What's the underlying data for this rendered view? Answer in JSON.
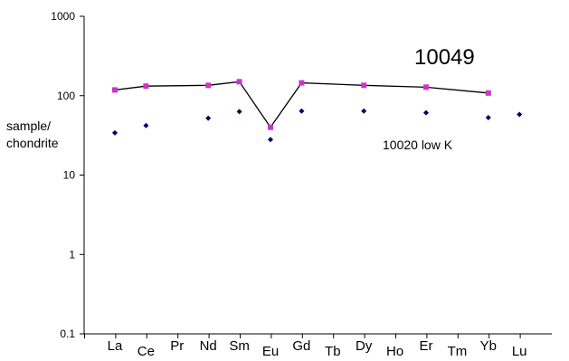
{
  "chart_data": {
    "type": "line",
    "y_scale": "log",
    "ylim": [
      0.1,
      1000
    ],
    "yticks": [
      "1000",
      "100",
      "10",
      "1",
      "0.1"
    ],
    "ytick_values": [
      1000,
      100,
      10,
      1,
      0.1
    ],
    "ylabel": [
      "sample/",
      "chondrite"
    ],
    "categories": [
      "La",
      "Ce",
      "Pr",
      "Nd",
      "Sm",
      "Eu",
      "Gd",
      "Tb",
      "Dy",
      "Ho",
      "Er",
      "Tm",
      "Yb",
      "Lu"
    ],
    "grid": false,
    "series": [
      {
        "name": "10049",
        "style": "line-with-square-markers",
        "line_color": "#000000",
        "marker_color": "#cc33cc",
        "values": [
          118,
          132,
          null,
          135,
          150,
          40,
          145,
          null,
          135,
          null,
          128,
          null,
          108,
          null
        ]
      },
      {
        "name": "10020 low K",
        "style": "diamond-markers",
        "marker_color": "#000066",
        "values": [
          34,
          42,
          null,
          52,
          63,
          28,
          64,
          null,
          64,
          null,
          61,
          null,
          53,
          58
        ]
      }
    ],
    "annotations": [
      {
        "text": "10049",
        "series": 0
      },
      {
        "text": "10020 low K",
        "series": 1
      }
    ]
  }
}
